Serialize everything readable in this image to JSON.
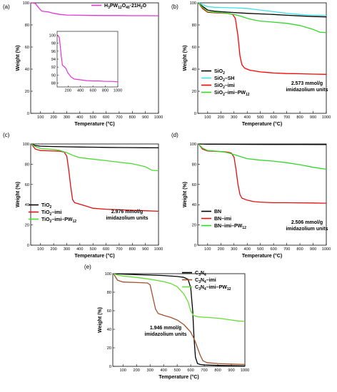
{
  "figure": {
    "panels": [
      {
        "letter": "(a)",
        "xlabel": "Temperature (°C)",
        "ylabel": "Weight (%)",
        "legend": [
          {
            "parts": [
              [
                "H",
                ""
              ],
              [
                "3",
                "sub"
              ],
              [
                "PW",
                ""
              ],
              [
                "12",
                "sub"
              ],
              [
                "O",
                ""
              ],
              [
                "40",
                "sub"
              ],
              [
                "·21H",
                ""
              ],
              [
                "2",
                "sub"
              ],
              [
                "O",
                ""
              ]
            ],
            "color": "#e135d6"
          }
        ],
        "annotation": []
      },
      {
        "letter": "(b)",
        "xlabel": "Temperature (°C)",
        "ylabel": "Weight (%)",
        "legend": [
          {
            "parts": [
              [
                "SiO",
                ""
              ],
              [
                "2",
                "sub"
              ]
            ],
            "color": "#000000"
          },
          {
            "parts": [
              [
                "SiO",
                ""
              ],
              [
                "2",
                "sub"
              ],
              [
                "–SH",
                ""
              ]
            ],
            "color": "#3fe0e6"
          },
          {
            "parts": [
              [
                "SiO",
                ""
              ],
              [
                "2",
                "sub"
              ],
              [
                "–imi",
                ""
              ]
            ],
            "color": "#ff0000"
          },
          {
            "parts": [
              [
                "SiO",
                ""
              ],
              [
                "2",
                "sub"
              ],
              [
                "–imi–PW",
                ""
              ],
              [
                "12",
                "sub"
              ]
            ],
            "color": "#33d62c"
          }
        ],
        "annotation": [
          "2.573 mmol/g",
          "imidazolium units"
        ]
      },
      {
        "letter": "(c)",
        "xlabel": "Temperature (°C)",
        "ylabel": "Weight (%)",
        "legend": [
          {
            "parts": [
              [
                "TiO",
                ""
              ],
              [
                "2",
                "sub"
              ]
            ],
            "color": "#000000"
          },
          {
            "parts": [
              [
                "TiO",
                ""
              ],
              [
                "2",
                "sub"
              ],
              [
                "–imi",
                ""
              ]
            ],
            "color": "#e01010"
          },
          {
            "parts": [
              [
                "TiO",
                ""
              ],
              [
                "2",
                "sub"
              ],
              [
                "–imi–PW",
                ""
              ],
              [
                "12",
                "sub"
              ]
            ],
            "color": "#4fd934"
          }
        ],
        "annotation": [
          "2.976 mmol/g",
          "imidazolium units"
        ]
      },
      {
        "letter": "(d)",
        "xlabel": "Temperature (°C)",
        "ylabel": "Weight (%)",
        "legend": [
          {
            "parts": [
              [
                "BN",
                ""
              ]
            ],
            "color": "#000000"
          },
          {
            "parts": [
              [
                "BN–imi",
                ""
              ]
            ],
            "color": "#e01010"
          },
          {
            "parts": [
              [
                "BN–imi–PW",
                ""
              ],
              [
                "12",
                "sub"
              ]
            ],
            "color": "#33d62c"
          }
        ],
        "annotation": [
          "2.506 mmol/g",
          "imidazolium units"
        ]
      },
      {
        "letter": "(e)",
        "xlabel": "Temperature (°C)",
        "ylabel": "Weight (%)",
        "legend": [
          {
            "parts": [
              [
                "C",
                ""
              ],
              [
                "3",
                "sub"
              ],
              [
                "N",
                ""
              ],
              [
                "4",
                "sub"
              ]
            ],
            "color": "#000000"
          },
          {
            "parts": [
              [
                "C",
                ""
              ],
              [
                "3",
                "sub"
              ],
              [
                "N",
                ""
              ],
              [
                "4",
                "sub"
              ],
              [
                "–imi",
                ""
              ]
            ],
            "color": "#a0522d"
          },
          {
            "parts": [
              [
                "C",
                ""
              ],
              [
                "3",
                "sub"
              ],
              [
                "N",
                ""
              ],
              [
                "4",
                "sub"
              ],
              [
                "–imi–PW",
                ""
              ],
              [
                "12",
                "sub"
              ]
            ],
            "color": "#66dd33"
          }
        ],
        "annotation": [
          "1.946 mmol/g",
          "imidazolium units"
        ]
      }
    ]
  },
  "chart_data": [
    {
      "type": "line",
      "panel": "(a)",
      "xlabel": "Temperature (°C)",
      "ylabel": "Weight (%)",
      "xlim": [
        25,
        1000
      ],
      "ylim": [
        0,
        100
      ],
      "xticks": [
        100,
        200,
        300,
        400,
        500,
        600,
        700,
        800,
        900,
        1000
      ],
      "yticks": [
        0,
        20,
        40,
        60,
        80,
        100
      ],
      "series": [
        {
          "name": "H3PW12O40·21H2O",
          "color": "#e135d6",
          "x": [
            30,
            60,
            90,
            110,
            130,
            160,
            200,
            250,
            300,
            400,
            500,
            600,
            700,
            800,
            900,
            1000
          ],
          "y": [
            100,
            99.5,
            95,
            92.5,
            92.2,
            91.8,
            90.5,
            89.5,
            89.0,
            88.8,
            88.6,
            88.5,
            88.5,
            88.4,
            88.4,
            88.3
          ]
        }
      ],
      "inset": {
        "xlim": [
          25,
          1000
        ],
        "ylim": [
          87,
          101
        ],
        "xticks": [
          200,
          400,
          600,
          800,
          1000
        ],
        "yticks": [
          88,
          90,
          92,
          94,
          96,
          98,
          100
        ],
        "series_ref": "H3PW12O40·21H2O"
      }
    },
    {
      "type": "line",
      "panel": "(b)",
      "xlabel": "Temperature (°C)",
      "ylabel": "Weight (%)",
      "xlim": [
        25,
        1000
      ],
      "ylim": [
        0,
        100
      ],
      "xticks": [
        100,
        200,
        300,
        400,
        500,
        600,
        700,
        800,
        900,
        1000
      ],
      "yticks": [
        0,
        20,
        40,
        60,
        80,
        100
      ],
      "series": [
        {
          "name": "SiO2",
          "color": "#000000",
          "x": [
            30,
            60,
            100,
            150,
            200,
            300,
            400,
            500,
            600,
            700,
            800,
            900,
            1000
          ],
          "y": [
            100,
            97,
            93.5,
            92.5,
            92,
            91.2,
            90.5,
            90,
            89.5,
            88.8,
            88.2,
            87.6,
            87.3
          ]
        },
        {
          "name": "SiO2–SH",
          "color": "#3fe0e6",
          "x": [
            30,
            60,
            100,
            150,
            200,
            300,
            400,
            500,
            600,
            700,
            800,
            900,
            1000
          ],
          "y": [
            100,
            98.5,
            96.5,
            96,
            95.8,
            95.5,
            95,
            93.5,
            92,
            90.5,
            89.5,
            88.8,
            88.5
          ]
        },
        {
          "name": "SiO2–imi",
          "color": "#ff0000",
          "x": [
            30,
            60,
            100,
            150,
            200,
            250,
            290,
            310,
            330,
            345,
            360,
            380,
            420,
            500,
            600,
            700,
            800,
            900,
            1000
          ],
          "y": [
            100,
            95,
            91.5,
            91,
            90.8,
            90.5,
            89.5,
            86,
            70,
            52,
            44,
            41,
            39,
            37.5,
            36.5,
            36,
            35.8,
            35.5,
            35.3
          ]
        },
        {
          "name": "SiO2–imi–PW12",
          "color": "#33d62c",
          "x": [
            30,
            60,
            100,
            150,
            200,
            250,
            300,
            350,
            400,
            450,
            500,
            600,
            700,
            800,
            900,
            950,
            1000
          ],
          "y": [
            100,
            96,
            92,
            91.5,
            91,
            90.5,
            89.5,
            88,
            86,
            84.5,
            83.5,
            82.5,
            81.5,
            79.5,
            76,
            73.5,
            73
          ]
        }
      ]
    },
    {
      "type": "line",
      "panel": "(c)",
      "xlabel": "Temperature (°C)",
      "ylabel": "Weight (%)",
      "xlim": [
        25,
        1000
      ],
      "ylim": [
        0,
        100
      ],
      "xticks": [
        100,
        200,
        300,
        400,
        500,
        600,
        700,
        800,
        900,
        1000
      ],
      "yticks": [
        0,
        20,
        40,
        60,
        80,
        100
      ],
      "series": [
        {
          "name": "TiO2",
          "color": "#000000",
          "x": [
            30,
            60,
            100,
            200,
            300,
            400,
            500,
            600,
            700,
            800,
            900,
            1000
          ],
          "y": [
            100,
            98.5,
            97.8,
            97.5,
            97.2,
            97,
            96.8,
            96.6,
            96.5,
            96.4,
            96.3,
            96.2
          ]
        },
        {
          "name": "TiO2–imi",
          "color": "#e01010",
          "x": [
            30,
            60,
            100,
            150,
            200,
            250,
            280,
            300,
            315,
            330,
            345,
            360,
            400,
            450,
            500,
            600,
            700,
            800,
            900,
            1000
          ],
          "y": [
            100,
            95,
            93.5,
            93.3,
            93,
            92.8,
            92,
            88,
            75,
            58,
            45,
            42,
            40.5,
            38.5,
            36.5,
            35.5,
            35,
            34.5,
            34,
            33.5
          ]
        },
        {
          "name": "TiO2–imi–PW12",
          "color": "#4fd934",
          "x": [
            30,
            60,
            100,
            150,
            200,
            250,
            300,
            350,
            400,
            500,
            600,
            700,
            800,
            900,
            950,
            1000
          ],
          "y": [
            100,
            97.5,
            95.5,
            95,
            94.5,
            93.5,
            91.5,
            88.5,
            86.5,
            85,
            83.5,
            82,
            80.5,
            77.5,
            74,
            73.5
          ]
        }
      ]
    },
    {
      "type": "line",
      "panel": "(d)",
      "xlabel": "Temperature (°C)",
      "ylabel": "Weight (%)",
      "xlim": [
        25,
        1000
      ],
      "ylim": [
        0,
        100
      ],
      "xticks": [
        100,
        200,
        300,
        400,
        500,
        600,
        700,
        800,
        900,
        1000
      ],
      "yticks": [
        0,
        20,
        40,
        60,
        80,
        100
      ],
      "series": [
        {
          "name": "BN",
          "color": "#000000",
          "x": [
            30,
            100,
            200,
            400,
            600,
            800,
            1000
          ],
          "y": [
            100,
            99.8,
            99.7,
            99.6,
            99.5,
            99.5,
            99.4
          ]
        },
        {
          "name": "BN–imi",
          "color": "#e01010",
          "x": [
            30,
            60,
            100,
            150,
            200,
            250,
            280,
            300,
            315,
            330,
            345,
            360,
            400,
            450,
            500,
            600,
            700,
            800,
            900,
            1000
          ],
          "y": [
            100,
            95,
            93,
            92.8,
            92.5,
            92,
            91,
            87,
            75,
            60,
            50,
            46.5,
            44.5,
            43,
            42.5,
            42,
            42,
            41.8,
            41.7,
            41.5
          ]
        },
        {
          "name": "BN–imi–PW12",
          "color": "#33d62c",
          "x": [
            30,
            60,
            100,
            150,
            200,
            250,
            300,
            350,
            400,
            500,
            600,
            700,
            800,
            900,
            1000
          ],
          "y": [
            100,
            96,
            93.5,
            93,
            92.5,
            91.5,
            89.5,
            87.5,
            85.5,
            84,
            83,
            81.5,
            79.5,
            77,
            75
          ]
        }
      ]
    },
    {
      "type": "line",
      "panel": "(e)",
      "xlabel": "Temperature (°C)",
      "ylabel": "Weight (%)",
      "xlim": [
        25,
        1000
      ],
      "ylim": [
        0,
        100
      ],
      "xticks": [
        100,
        200,
        300,
        400,
        500,
        600,
        700,
        800,
        900,
        1000
      ],
      "yticks": [
        0,
        20,
        40,
        60,
        80,
        100
      ],
      "series": [
        {
          "name": "C3N4",
          "color": "#000000",
          "x": [
            30,
            100,
            200,
            300,
            400,
            500,
            550,
            580,
            600,
            615,
            625,
            635,
            650,
            670,
            700,
            800,
            1000
          ],
          "y": [
            100,
            99.5,
            99,
            98.5,
            98,
            97,
            96,
            94,
            85,
            60,
            30,
            10,
            3,
            2,
            1.5,
            1,
            0.5
          ]
        },
        {
          "name": "C3N4–imi",
          "color": "#a0522d",
          "x": [
            30,
            60,
            100,
            200,
            280,
            300,
            320,
            340,
            360,
            400,
            450,
            500,
            550,
            600,
            630,
            650,
            670,
            690,
            720,
            800,
            900,
            1000
          ],
          "y": [
            100,
            93,
            91,
            90.5,
            90,
            88,
            75,
            62,
            57,
            55,
            53,
            50,
            45,
            37,
            28,
            20,
            12,
            6,
            4,
            3,
            2.5,
            2
          ]
        },
        {
          "name": "C3N4–imi–PW12",
          "color": "#66dd33",
          "x": [
            30,
            60,
            100,
            200,
            300,
            400,
            450,
            500,
            550,
            580,
            600,
            620,
            650,
            700,
            800,
            900,
            950,
            1000
          ],
          "y": [
            100,
            98.5,
            97.5,
            96,
            94,
            91.5,
            89.5,
            86,
            78,
            70,
            60,
            55,
            53.5,
            53,
            52,
            50,
            49,
            48.5
          ]
        }
      ]
    }
  ]
}
